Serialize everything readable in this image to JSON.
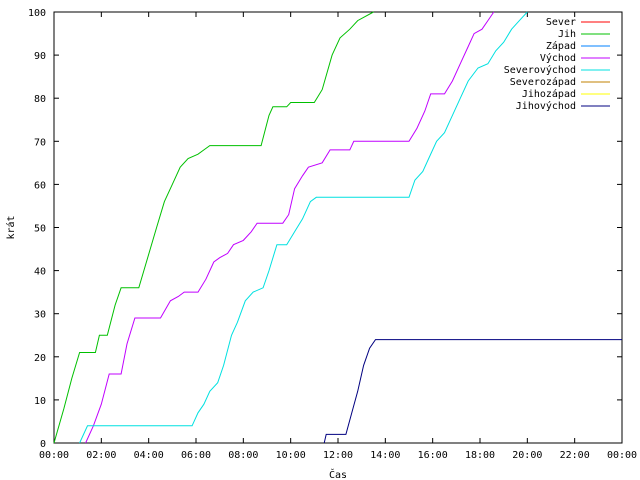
{
  "chart_data": {
    "type": "line",
    "title": "",
    "xlabel": "Čas",
    "ylabel": "krát",
    "xlim": [
      "00:00",
      "24:00"
    ],
    "ylim": [
      0,
      100
    ],
    "x_tick_labels": [
      "00:00",
      "02:00",
      "04:00",
      "06:00",
      "08:00",
      "10:00",
      "12:00",
      "14:00",
      "16:00",
      "18:00",
      "20:00",
      "22:00",
      "00:00"
    ],
    "y_tick_labels": [
      "0",
      "10",
      "20",
      "30",
      "40",
      "50",
      "60",
      "70",
      "80",
      "90",
      "100"
    ],
    "grid": false,
    "legend_position": "top-right",
    "series": [
      {
        "name": "Sever",
        "color": "#ff0000",
        "points": []
      },
      {
        "name": "Jih",
        "color": "#00c000",
        "points": [
          [
            "00:00",
            0
          ],
          [
            "00:25",
            8
          ],
          [
            "00:45",
            15
          ],
          [
            "01:05",
            21
          ],
          [
            "01:45",
            21
          ],
          [
            "01:55",
            25
          ],
          [
            "02:15",
            25
          ],
          [
            "02:35",
            32
          ],
          [
            "02:50",
            36
          ],
          [
            "03:35",
            36
          ],
          [
            "04:20",
            50
          ],
          [
            "04:40",
            56
          ],
          [
            "05:00",
            60
          ],
          [
            "05:20",
            64
          ],
          [
            "05:40",
            66
          ],
          [
            "06:05",
            67
          ],
          [
            "06:20",
            68
          ],
          [
            "06:35",
            69
          ],
          [
            "08:45",
            69
          ],
          [
            "09:05",
            76
          ],
          [
            "09:15",
            78
          ],
          [
            "09:50",
            78
          ],
          [
            "10:00",
            79
          ],
          [
            "11:00",
            79
          ],
          [
            "11:20",
            82
          ],
          [
            "11:45",
            90
          ],
          [
            "12:05",
            94
          ],
          [
            "12:30",
            96
          ],
          [
            "12:50",
            98
          ],
          [
            "13:30",
            100
          ]
        ]
      },
      {
        "name": "Západ",
        "color": "#0080ff",
        "points": []
      },
      {
        "name": "Východ",
        "color": "#c000ff",
        "points": [
          [
            "01:20",
            0
          ],
          [
            "01:40",
            4
          ],
          [
            "02:00",
            9
          ],
          [
            "02:20",
            16
          ],
          [
            "02:50",
            16
          ],
          [
            "03:05",
            23
          ],
          [
            "03:25",
            29
          ],
          [
            "04:30",
            29
          ],
          [
            "04:55",
            33
          ],
          [
            "05:15",
            34
          ],
          [
            "05:30",
            35
          ],
          [
            "06:05",
            35
          ],
          [
            "06:25",
            38
          ],
          [
            "06:45",
            42
          ],
          [
            "07:00",
            43
          ],
          [
            "07:20",
            44
          ],
          [
            "07:35",
            46
          ],
          [
            "08:00",
            47
          ],
          [
            "08:20",
            49
          ],
          [
            "08:35",
            51
          ],
          [
            "09:40",
            51
          ],
          [
            "09:55",
            53
          ],
          [
            "10:10",
            59
          ],
          [
            "10:30",
            62
          ],
          [
            "10:45",
            64
          ],
          [
            "11:20",
            65
          ],
          [
            "11:40",
            68
          ],
          [
            "12:30",
            68
          ],
          [
            "12:40",
            70
          ],
          [
            "15:00",
            70
          ],
          [
            "15:20",
            73
          ],
          [
            "15:40",
            77
          ],
          [
            "15:55",
            81
          ],
          [
            "16:30",
            81
          ],
          [
            "16:50",
            84
          ],
          [
            "17:10",
            88
          ],
          [
            "17:30",
            92
          ],
          [
            "17:45",
            95
          ],
          [
            "18:05",
            96
          ],
          [
            "18:20",
            98
          ],
          [
            "18:35",
            100
          ]
        ]
      },
      {
        "name": "Severovýchod",
        "color": "#00e0e0",
        "points": [
          [
            "01:05",
            0
          ],
          [
            "01:25",
            4
          ],
          [
            "05:50",
            4
          ],
          [
            "06:05",
            7
          ],
          [
            "06:20",
            9
          ],
          [
            "06:35",
            12
          ],
          [
            "06:55",
            14
          ],
          [
            "07:10",
            18
          ],
          [
            "07:30",
            25
          ],
          [
            "07:45",
            28
          ],
          [
            "08:05",
            33
          ],
          [
            "08:25",
            35
          ],
          [
            "08:50",
            36
          ],
          [
            "09:05",
            40
          ],
          [
            "09:25",
            46
          ],
          [
            "09:50",
            46
          ],
          [
            "10:10",
            49
          ],
          [
            "10:30",
            52
          ],
          [
            "10:50",
            56
          ],
          [
            "11:05",
            57
          ],
          [
            "15:00",
            57
          ],
          [
            "15:15",
            61
          ],
          [
            "15:35",
            63
          ],
          [
            "15:50",
            66
          ],
          [
            "16:10",
            70
          ],
          [
            "16:30",
            72
          ],
          [
            "16:50",
            76
          ],
          [
            "17:10",
            80
          ],
          [
            "17:30",
            84
          ],
          [
            "17:55",
            87
          ],
          [
            "18:20",
            88
          ],
          [
            "18:40",
            91
          ],
          [
            "19:00",
            93
          ],
          [
            "19:20",
            96
          ],
          [
            "19:40",
            98
          ],
          [
            "20:00",
            100
          ]
        ]
      },
      {
        "name": "Severozápad",
        "color": "#c08000",
        "points": []
      },
      {
        "name": "Jihozápad",
        "color": "#ffff00",
        "points": []
      },
      {
        "name": "Jihovýchod",
        "color": "#000080",
        "points": [
          [
            "11:25",
            0
          ],
          [
            "11:30",
            2
          ],
          [
            "12:20",
            2
          ],
          [
            "12:35",
            7
          ],
          [
            "12:50",
            12
          ],
          [
            "13:05",
            18
          ],
          [
            "13:20",
            22
          ],
          [
            "13:35",
            24
          ],
          [
            "24:00",
            24
          ]
        ]
      }
    ]
  }
}
